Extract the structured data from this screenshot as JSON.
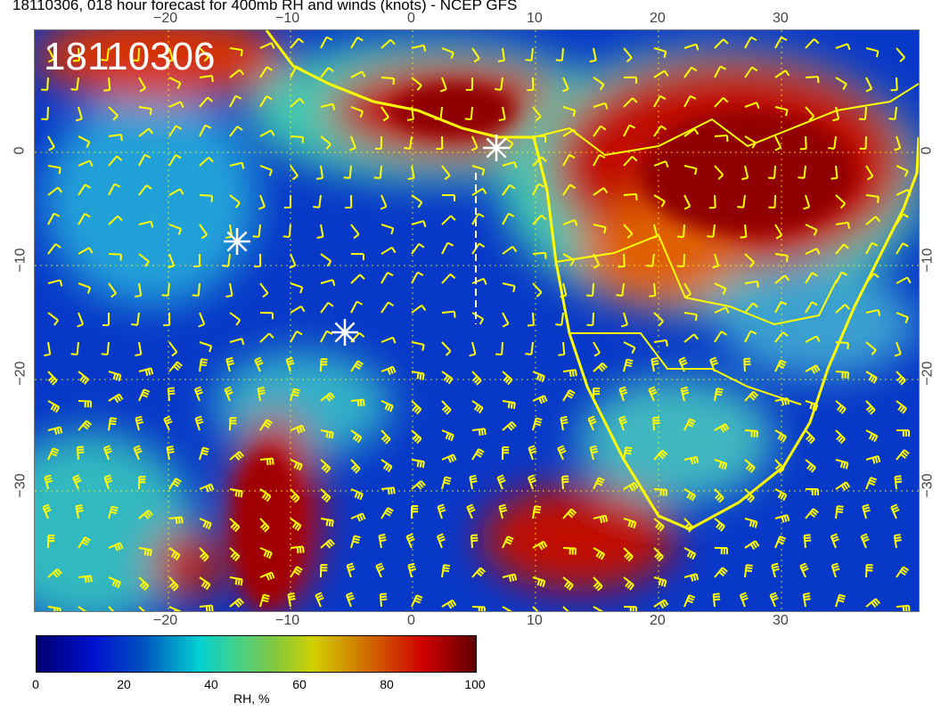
{
  "title": "18110306, 018 hour forecast for 400mb RH and winds (knots) - NCEP GFS",
  "stamp": "18110306",
  "lon_ticks": [
    "−20",
    "−10",
    "0",
    "10",
    "20",
    "30"
  ],
  "lat_ticks": [
    "0",
    "−10",
    "−20",
    "−30"
  ],
  "colorbar": {
    "label": "RH, %",
    "ticks": [
      "0",
      "20",
      "40",
      "60",
      "80",
      "100"
    ],
    "colors": [
      "#000070",
      "#0010d0",
      "#00d0d0",
      "#d0d000",
      "#d00000",
      "#600000"
    ]
  },
  "overlay_color": "#ffff00",
  "markers": [
    "asterisk",
    "asterisk",
    "asterisk"
  ]
}
